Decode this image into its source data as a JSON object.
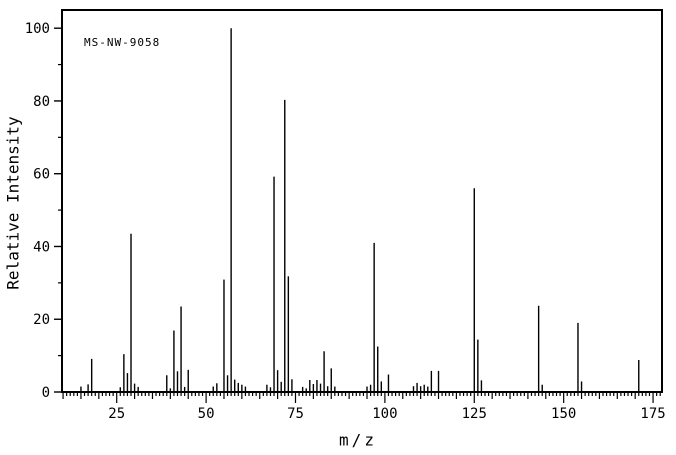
{
  "window": {
    "background_color": "#ffffff",
    "foreground_color": "#000000"
  },
  "chart_data": {
    "type": "bar",
    "subtype": "mass-spectrum",
    "title": "MS-NW-9058",
    "xlabel": "m/z",
    "ylabel": "Relative Intensity",
    "xlim": [
      9.7,
      177.5
    ],
    "ylim": [
      0,
      105
    ],
    "grid": false,
    "legend": false,
    "x_tick_labels": [
      25,
      50,
      75,
      100,
      125,
      150,
      175
    ],
    "y_tick_labels": [
      0,
      20,
      40,
      60,
      80,
      100
    ],
    "x_minor_tick_step": 1,
    "x_medium_tick_step": 5,
    "y_minor_tick_step": 10,
    "series": [
      {
        "name": "Relative Intensity",
        "points": [
          [
            15,
            1.5
          ],
          [
            17,
            2.1
          ],
          [
            18,
            9.1
          ],
          [
            26,
            1.3
          ],
          [
            27,
            10.4
          ],
          [
            28,
            5.2
          ],
          [
            29,
            43.5
          ],
          [
            30,
            2.3
          ],
          [
            31,
            1.4
          ],
          [
            39,
            4.6
          ],
          [
            40,
            1.0
          ],
          [
            41,
            16.9
          ],
          [
            42,
            5.7
          ],
          [
            43,
            23.5
          ],
          [
            44,
            1.4
          ],
          [
            45,
            6.1
          ],
          [
            52,
            1.5
          ],
          [
            53,
            2.4
          ],
          [
            55,
            30.9
          ],
          [
            56,
            4.6
          ],
          [
            57,
            100.0
          ],
          [
            58,
            3.4
          ],
          [
            59,
            2.5
          ],
          [
            60,
            2.0
          ],
          [
            61,
            1.5
          ],
          [
            67,
            2.0
          ],
          [
            68,
            1.3
          ],
          [
            69,
            59.2
          ],
          [
            70,
            6.0
          ],
          [
            71,
            2.8
          ],
          [
            72,
            80.3
          ],
          [
            73,
            31.8
          ],
          [
            74,
            3.5
          ],
          [
            77,
            1.4
          ],
          [
            78,
            1.0
          ],
          [
            79,
            3.3
          ],
          [
            80,
            2.2
          ],
          [
            81,
            3.3
          ],
          [
            82,
            2.3
          ],
          [
            83,
            11.2
          ],
          [
            84,
            1.6
          ],
          [
            85,
            6.5
          ],
          [
            86,
            1.5
          ],
          [
            95,
            1.5
          ],
          [
            96,
            2.0
          ],
          [
            97,
            41.0
          ],
          [
            98,
            12.5
          ],
          [
            99,
            2.9
          ],
          [
            101,
            4.8
          ],
          [
            108,
            1.6
          ],
          [
            109,
            2.5
          ],
          [
            110,
            1.6
          ],
          [
            111,
            2.0
          ],
          [
            112,
            1.5
          ],
          [
            113,
            5.8
          ],
          [
            115,
            5.8
          ],
          [
            125,
            56.0
          ],
          [
            126,
            14.4
          ],
          [
            127,
            3.2
          ],
          [
            143,
            23.7
          ],
          [
            144,
            2.0
          ],
          [
            154,
            19.0
          ],
          [
            155,
            2.9
          ],
          [
            171,
            8.8
          ]
        ]
      }
    ]
  }
}
